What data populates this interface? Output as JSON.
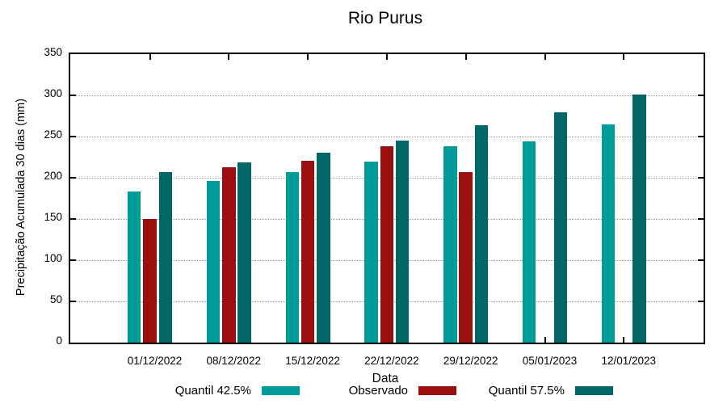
{
  "title": "Rio Purus",
  "chart_data": {
    "type": "bar",
    "title": "Rio Purus",
    "xlabel": "Data",
    "ylabel": "Precipitação Acumulada 30 dias (mm)",
    "ylim": [
      0,
      350
    ],
    "ytick_step": 50,
    "yticks": [
      0,
      50,
      100,
      150,
      200,
      250,
      300,
      350
    ],
    "grid": "horizontal dotted gridlines at each 50, mirrored ticks on all four borders",
    "legend_position": "bottom",
    "background_color": "#ffffff",
    "axis_color": "#000000",
    "gridline_color": "#9a9a9a",
    "categories": [
      "01/12/2022",
      "08/12/2022",
      "15/12/2022",
      "22/12/2022",
      "29/12/2022",
      "05/01/2023",
      "12/01/2023"
    ],
    "series": [
      {
        "key": "quantil-425",
        "name": "Quantil 42.5%",
        "color": "#009C9A",
        "values": [
          183,
          196,
          207,
          220,
          238,
          244,
          265
        ]
      },
      {
        "key": "observado",
        "name": "Observado",
        "color": "#9B0F0F",
        "values": [
          150,
          213,
          221,
          238,
          207,
          null,
          null
        ]
      },
      {
        "key": "quantil-575",
        "name": "Quantil 57.5%",
        "color": "#006666",
        "values": [
          207,
          219,
          230,
          245,
          264,
          279,
          301
        ]
      }
    ]
  }
}
